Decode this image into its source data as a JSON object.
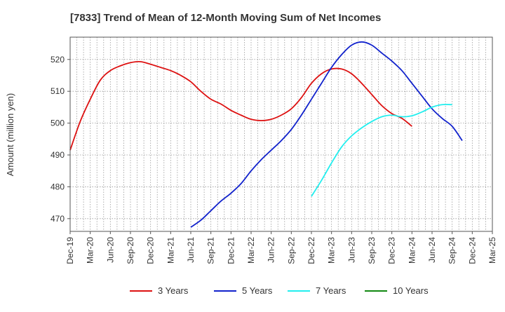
{
  "chart_data": {
    "type": "line",
    "title": "[7833]  Trend of Mean of 12-Month Moving Sum of Net Incomes",
    "xlabel": "",
    "ylabel": "Amount (million yen)",
    "x_tick_labels": [
      "Dec-19",
      "Mar-20",
      "Jun-20",
      "Sep-20",
      "Dec-20",
      "Mar-21",
      "Jun-21",
      "Sep-21",
      "Dec-21",
      "Mar-22",
      "Jun-22",
      "Sep-22",
      "Dec-22",
      "Mar-23",
      "Jun-23",
      "Sep-23",
      "Dec-23",
      "Mar-24",
      "Jun-24",
      "Sep-24",
      "Dec-24",
      "Mar-25"
    ],
    "y_ticks": [
      470,
      480,
      490,
      500,
      510,
      520
    ],
    "ylim": [
      466,
      527
    ],
    "grid": true,
    "legend_position": "bottom",
    "series": [
      {
        "name": "3 Years",
        "color": "#dd1111",
        "points": [
          [
            0,
            491.5
          ],
          [
            1,
            500.5
          ],
          [
            2,
            507.5
          ],
          [
            3,
            513.5
          ],
          [
            4,
            516.5
          ],
          [
            5,
            518
          ],
          [
            6,
            519
          ],
          [
            7,
            519.3
          ],
          [
            8,
            518.5
          ],
          [
            9,
            517.5
          ],
          [
            10,
            516.5
          ],
          [
            11,
            515
          ],
          [
            12,
            513
          ],
          [
            13,
            510
          ],
          [
            14,
            507.5
          ],
          [
            15,
            506
          ],
          [
            16,
            504
          ],
          [
            17,
            502.5
          ],
          [
            18,
            501.2
          ],
          [
            19,
            500.8
          ],
          [
            20,
            501.2
          ],
          [
            21,
            502.5
          ],
          [
            22,
            504.5
          ],
          [
            23,
            508
          ],
          [
            24,
            512.5
          ],
          [
            25,
            515.5
          ],
          [
            26,
            517
          ],
          [
            27,
            517
          ],
          [
            28,
            515.5
          ],
          [
            29,
            512.5
          ],
          [
            30,
            509
          ],
          [
            31,
            505.5
          ],
          [
            32,
            503
          ],
          [
            33,
            501.5
          ],
          [
            34,
            499
          ]
        ]
      },
      {
        "name": "5 Years",
        "color": "#1122cc",
        "points": [
          [
            12,
            467.3
          ],
          [
            13,
            469.5
          ],
          [
            14,
            472.5
          ],
          [
            15,
            475.5
          ],
          [
            16,
            478
          ],
          [
            17,
            481
          ],
          [
            18,
            485
          ],
          [
            19,
            488.5
          ],
          [
            20,
            491.5
          ],
          [
            21,
            494.5
          ],
          [
            22,
            498
          ],
          [
            23,
            502.5
          ],
          [
            24,
            507.5
          ],
          [
            25,
            512.5
          ],
          [
            26,
            517.5
          ],
          [
            27,
            521.5
          ],
          [
            28,
            524.5
          ],
          [
            29,
            525.5
          ],
          [
            30,
            524.5
          ],
          [
            31,
            522
          ],
          [
            32,
            519.5
          ],
          [
            33,
            516.5
          ],
          [
            34,
            512.5
          ],
          [
            35,
            508.5
          ],
          [
            36,
            504.5
          ],
          [
            37,
            501.5
          ],
          [
            38,
            499
          ],
          [
            39,
            494.5
          ]
        ]
      },
      {
        "name": "7 Years",
        "color": "#22eeee",
        "points": [
          [
            24,
            477
          ],
          [
            25,
            482
          ],
          [
            26,
            487.5
          ],
          [
            27,
            492.5
          ],
          [
            28,
            496
          ],
          [
            29,
            498.5
          ],
          [
            30,
            500.5
          ],
          [
            31,
            502
          ],
          [
            32,
            502.5
          ],
          [
            33,
            502
          ],
          [
            34,
            502.3
          ],
          [
            35,
            503.5
          ],
          [
            36,
            505
          ],
          [
            37,
            505.8
          ],
          [
            38,
            505.8
          ]
        ]
      },
      {
        "name": "10 Years",
        "color": "#118811",
        "points": []
      }
    ]
  }
}
